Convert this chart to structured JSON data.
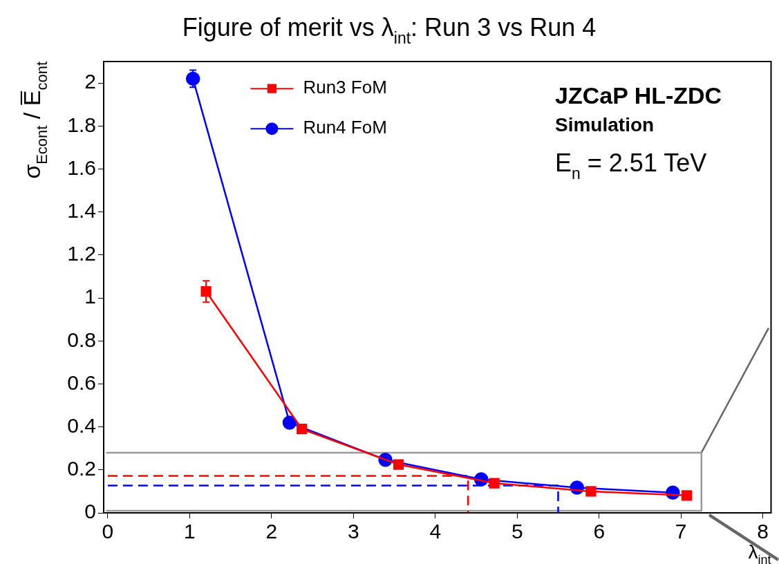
{
  "chart_data": {
    "type": "line",
    "title": "Figure of merit vs λ$_{int}$: Run 3 vs Run 4",
    "xlabel": "λ$_{int}$",
    "ylabel": "σ$_{Econt}$ / E̅$_{cont}$",
    "xlim": [
      -0.05,
      8.1
    ],
    "xticks": [
      0,
      1,
      2,
      3,
      4,
      5,
      6,
      7,
      8
    ],
    "ylim": [
      0,
      2.1
    ],
    "yticks": [
      0,
      0.2,
      0.4,
      0.6,
      0.8,
      1,
      1.2,
      1.4,
      1.6,
      1.8,
      2
    ],
    "grid": false,
    "legend": "top left",
    "line_style": "solid",
    "series": [
      {
        "name": "Run3 FoM",
        "color": "#ff0000",
        "marker": "square",
        "x": [
          1.2,
          2.37,
          3.55,
          4.72,
          5.9,
          7.07
        ],
        "values": [
          1.03,
          0.39,
          0.225,
          0.138,
          0.1,
          0.081
        ],
        "errors": [
          0.05,
          null,
          null,
          null,
          null,
          null
        ]
      },
      {
        "name": "Run4 FoM",
        "color": "#0000ff",
        "marker": "circle",
        "x": [
          1.04,
          2.22,
          3.39,
          4.56,
          5.73,
          6.9
        ],
        "values": [
          2.02,
          0.42,
          0.247,
          0.156,
          0.117,
          0.094
        ],
        "errors": [
          0.04,
          null,
          null,
          null,
          null,
          null
        ]
      },
      {
        "color": "#ff0000",
        "marker": "none",
        "line_style": "dashed",
        "x": [
          0,
          4.4,
          4.4
        ],
        "values": [
          0.172,
          0.172,
          0
        ]
      },
      {
        "color": "#0000ff",
        "marker": "none",
        "line_style": "dashed",
        "x": [
          0,
          5.5,
          5.5
        ],
        "values": [
          0.127,
          0.127,
          0
        ]
      },
      {
        "color": "#999999",
        "marker": "none",
        "x": [
          -0.02,
          7.25,
          7.25,
          -0.02
        ],
        "values": [
          0.28,
          0.28,
          0.01,
          0.01
        ]
      },
      {
        "color": "#666666",
        "marker": "none",
        "x": [
          7.25,
          8.07
        ],
        "values": [
          0.28,
          0.86
        ]
      }
    ],
    "annotations": [
      "JZCaP HL-ZDC",
      "Simulation",
      "E$_{n}$ = 2.51 TeV"
    ]
  }
}
